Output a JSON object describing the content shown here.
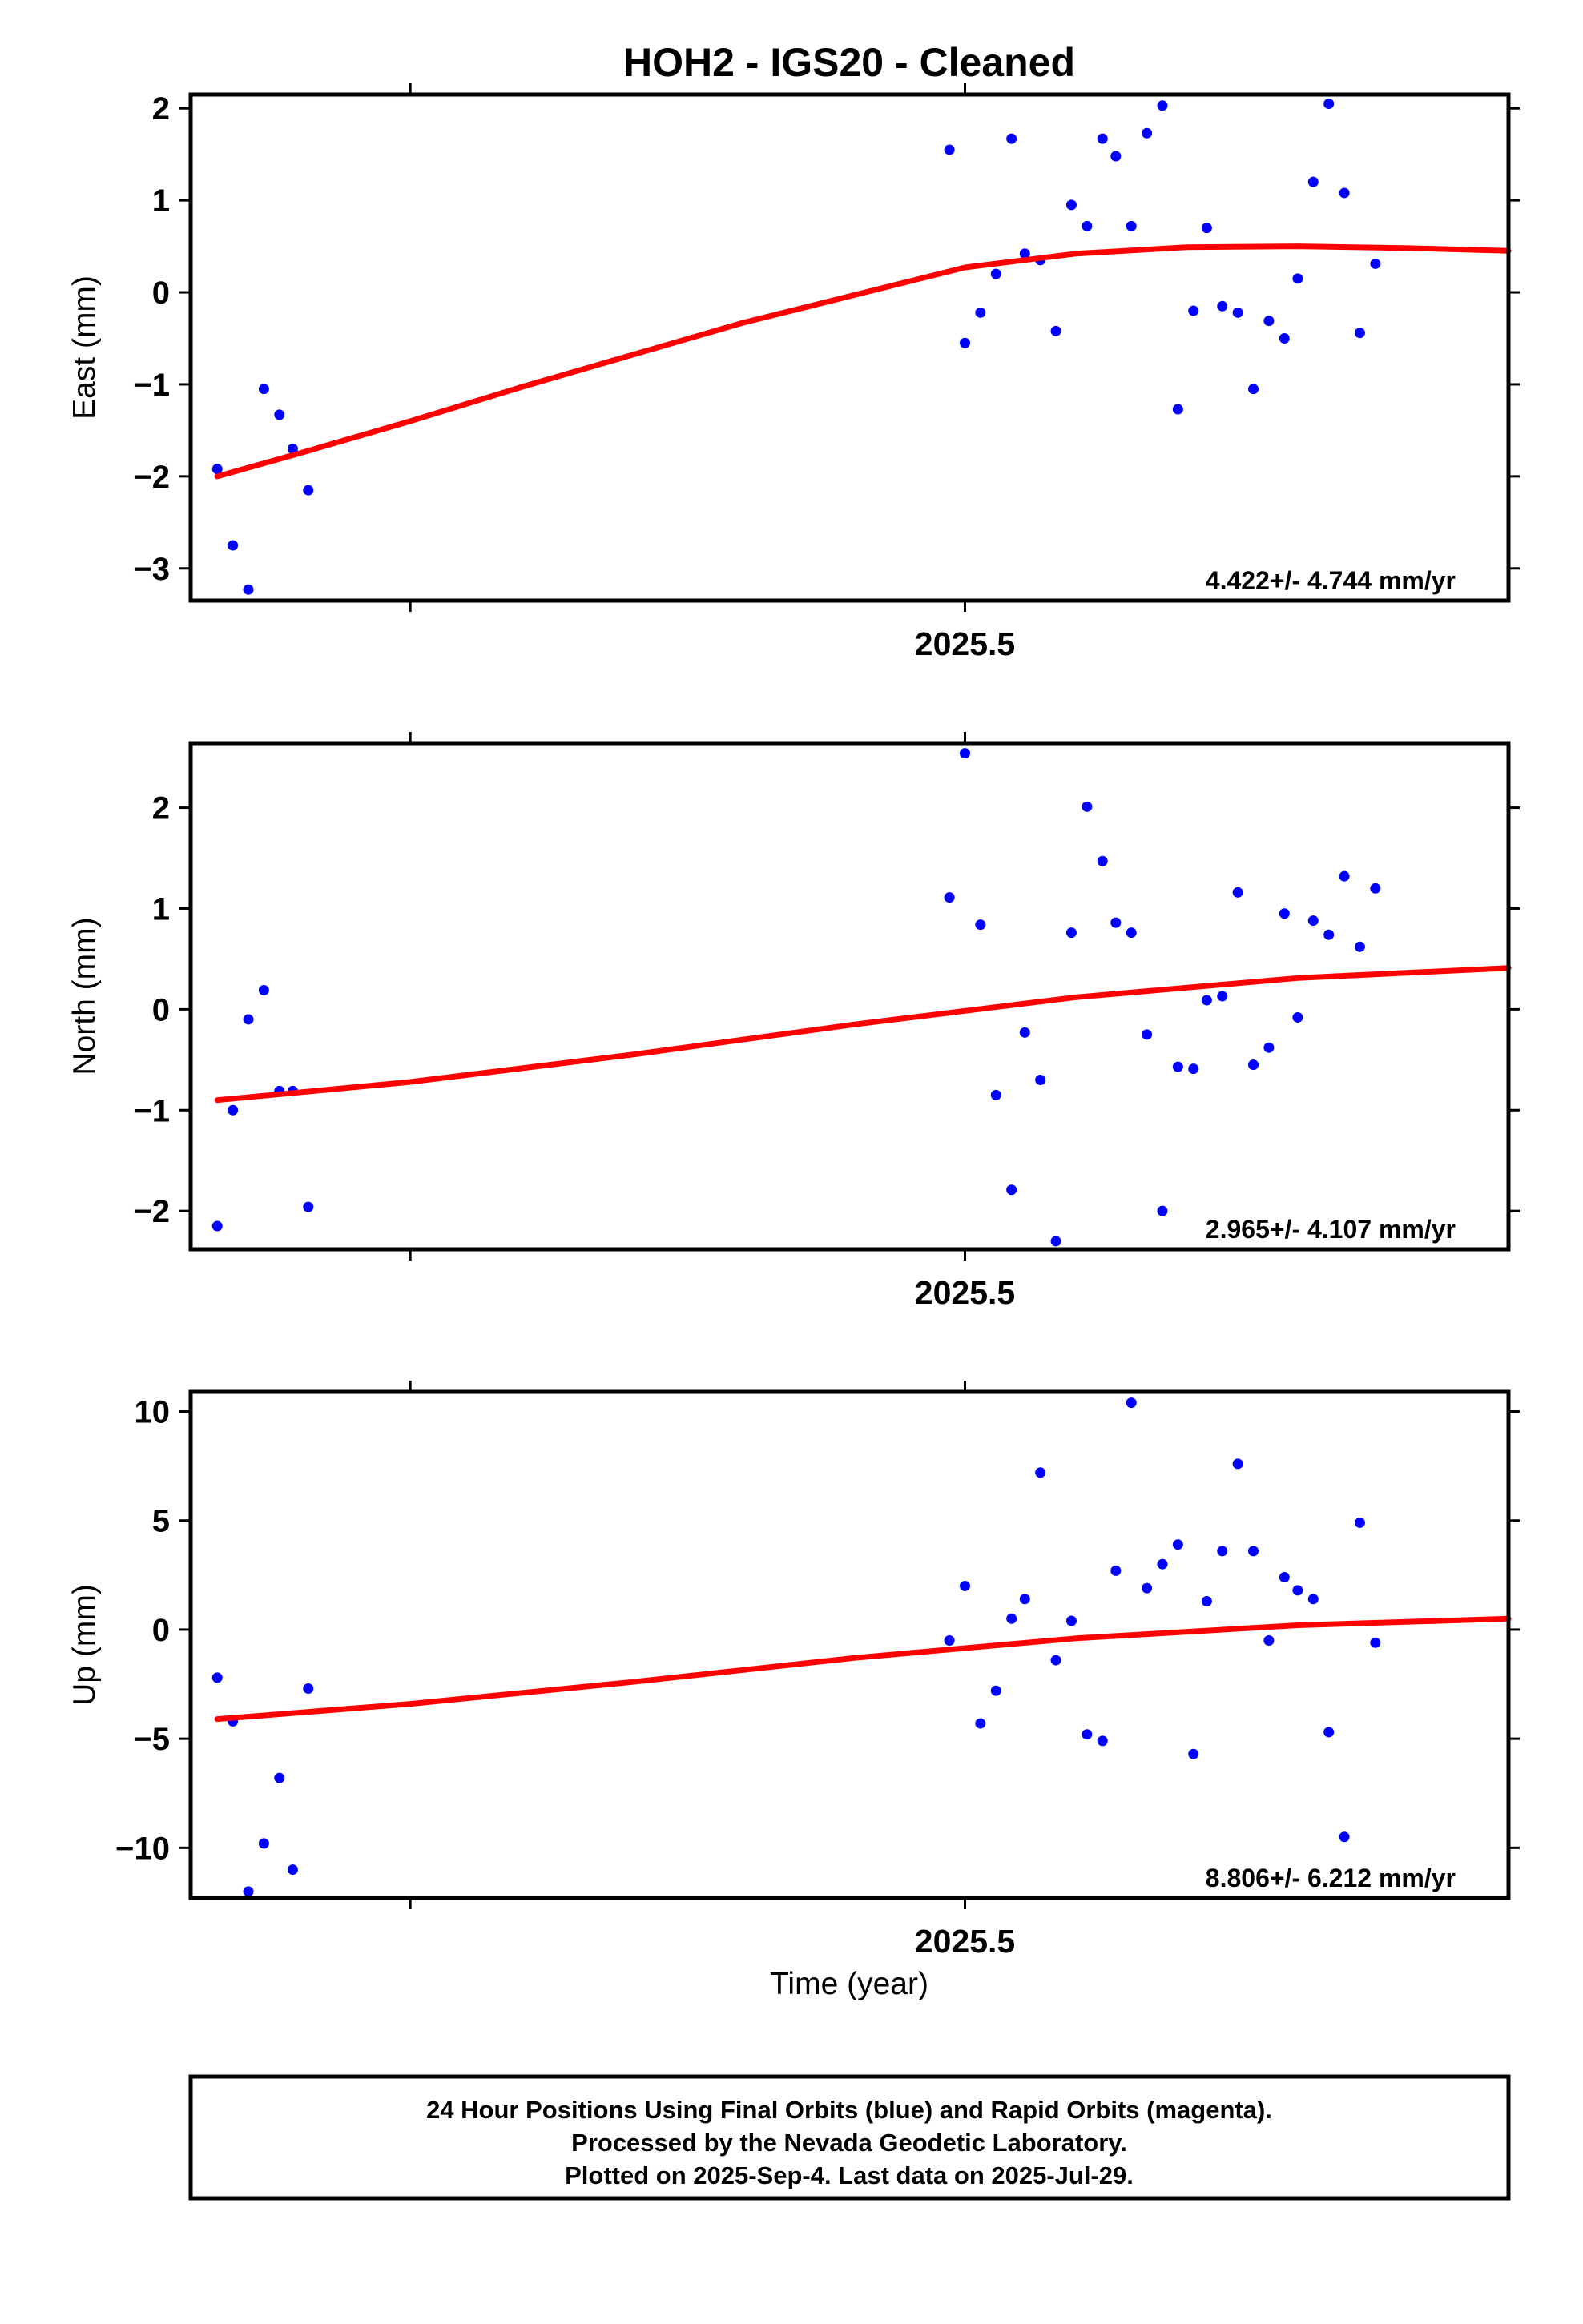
{
  "title": "HOH2  - IGS20 - Cleaned",
  "xlabel": "Time (year)",
  "x_tick_label": "2025.5",
  "footer": {
    "line1": "24 Hour Positions Using Final Orbits (blue) and Rapid Orbits (magenta).",
    "line2": "Processed by the Nevada Geodetic Laboratory.",
    "line3": "Plotted on 2025-Sep-4. Last data on 2025-Jul-29."
  },
  "colors": {
    "points": "#0000ff",
    "fit": "#ff0000",
    "frame": "#000000"
  },
  "chart_data": [
    {
      "type": "scatter",
      "ylabel": "East (mm)",
      "rate": "4.422+/- 4.744 mm/yr",
      "xlim": [
        2025.151,
        2025.745
      ],
      "ylim": [
        -3.35,
        2.15
      ],
      "yticks": [
        2,
        1,
        0,
        -1,
        -2,
        -3
      ],
      "ytick_labels": [
        "2",
        "1",
        "0",
        "−1",
        "−2",
        "−3"
      ],
      "xticks": [
        2025.25,
        2025.5
      ],
      "x": [
        2025.163,
        2025.17,
        2025.177,
        2025.184,
        2025.191,
        2025.197,
        2025.204,
        2025.493,
        2025.5,
        2025.507,
        2025.514,
        2025.521,
        2025.527,
        2025.534,
        2025.541,
        2025.548,
        2025.555,
        2025.562,
        2025.568,
        2025.575,
        2025.582,
        2025.589,
        2025.596,
        2025.603,
        2025.609,
        2025.616,
        2025.623,
        2025.63,
        2025.637,
        2025.644,
        2025.65,
        2025.657,
        2025.664,
        2025.671,
        2025.678,
        2025.685,
        2025.692,
        2025.698,
        2025.705,
        2025.712,
        2025.719,
        2025.726,
        2025.733
      ],
      "y": [
        -1.92,
        -2.75,
        -3.23,
        -1.05,
        -1.33,
        -1.7,
        -2.15,
        1.55,
        -0.55,
        -0.22,
        0.2,
        1.67,
        0.42,
        0.35,
        -0.42,
        0.95,
        0.72,
        1.67,
        1.48,
        0.72,
        1.73,
        2.03,
        -1.27,
        -0.2,
        0.7,
        -0.15,
        -0.22,
        -1.05,
        -0.31,
        -0.5,
        0.15,
        1.2,
        2.05,
        1.08,
        -0.44,
        0.31,
        null,
        null,
        null,
        null,
        null,
        null,
        null
      ],
      "fit": {
        "x": [
          2025.163,
          2025.2,
          2025.25,
          2025.3,
          2025.35,
          2025.4,
          2025.45,
          2025.5,
          2025.55,
          2025.6,
          2025.65,
          2025.7,
          2025.745
        ],
        "y": [
          -2.0,
          -1.75,
          -1.4,
          -1.03,
          -0.68,
          -0.33,
          -0.03,
          0.27,
          0.42,
          0.49,
          0.5,
          0.48,
          0.45
        ]
      }
    },
    {
      "type": "scatter",
      "ylabel": "North (mm)",
      "rate": "2.965+/- 4.107 mm/yr",
      "xlim": [
        2025.151,
        2025.745
      ],
      "ylim": [
        -2.38,
        2.64
      ],
      "yticks": [
        2,
        1,
        0,
        -1,
        -2
      ],
      "ytick_labels": [
        "2",
        "1",
        "0",
        "−1",
        "−2"
      ],
      "xticks": [
        2025.25,
        2025.5
      ],
      "x": [
        2025.163,
        2025.17,
        2025.177,
        2025.184,
        2025.191,
        2025.197,
        2025.204,
        2025.493,
        2025.5,
        2025.507,
        2025.514,
        2025.521,
        2025.527,
        2025.534,
        2025.541,
        2025.548,
        2025.555,
        2025.562,
        2025.568,
        2025.575,
        2025.582,
        2025.589,
        2025.596,
        2025.603,
        2025.609,
        2025.616,
        2025.623,
        2025.63,
        2025.637,
        2025.644,
        2025.65,
        2025.657,
        2025.664,
        2025.671,
        2025.678,
        2025.685
      ],
      "y": [
        -2.15,
        -1.0,
        -0.1,
        0.19,
        -0.81,
        -0.81,
        -1.96,
        1.11,
        2.54,
        0.84,
        -0.85,
        -1.79,
        -0.23,
        -0.7,
        -2.3,
        0.76,
        2.01,
        1.47,
        0.86,
        0.76,
        -0.25,
        -2.0,
        -0.57,
        -0.59,
        0.09,
        0.13,
        1.16,
        -0.55,
        -0.38,
        0.95,
        -0.08,
        0.88,
        0.74,
        1.32,
        0.62,
        1.2
      ],
      "fit": {
        "x": [
          2025.163,
          2025.25,
          2025.35,
          2025.45,
          2025.55,
          2025.65,
          2025.745
        ],
        "y": [
          -0.9,
          -0.72,
          -0.45,
          -0.15,
          0.12,
          0.31,
          0.41
        ]
      }
    },
    {
      "type": "scatter",
      "ylabel": "Up (mm)",
      "rate": "8.806+/- 6.212 mm/yr",
      "xlim": [
        2025.151,
        2025.745
      ],
      "ylim": [
        -12.3,
        10.9
      ],
      "yticks": [
        10,
        5,
        0,
        -5,
        -10
      ],
      "ytick_labels": [
        "10",
        "5",
        "0",
        "−5",
        "−10"
      ],
      "xticks": [
        2025.25,
        2025.5
      ],
      "x": [
        2025.163,
        2025.17,
        2025.177,
        2025.184,
        2025.191,
        2025.197,
        2025.204,
        2025.493,
        2025.5,
        2025.507,
        2025.514,
        2025.521,
        2025.527,
        2025.534,
        2025.541,
        2025.548,
        2025.555,
        2025.562,
        2025.568,
        2025.575,
        2025.582,
        2025.589,
        2025.596,
        2025.603,
        2025.609,
        2025.616,
        2025.623,
        2025.63,
        2025.637,
        2025.644,
        2025.65,
        2025.657,
        2025.664,
        2025.671,
        2025.678,
        2025.685
      ],
      "y": [
        -2.2,
        -4.2,
        -12.0,
        -9.8,
        -6.8,
        -11.0,
        -2.7,
        -0.5,
        2.0,
        -4.3,
        -2.8,
        0.5,
        1.4,
        7.2,
        -1.4,
        0.4,
        -4.8,
        -5.1,
        2.7,
        10.4,
        1.9,
        3.0,
        3.9,
        -5.7,
        1.3,
        3.6,
        7.6,
        3.6,
        -0.5,
        2.4,
        1.8,
        1.4,
        -4.7,
        -9.5,
        4.9,
        -0.6
      ],
      "fit": {
        "x": [
          2025.163,
          2025.25,
          2025.35,
          2025.45,
          2025.55,
          2025.65,
          2025.745
        ],
        "y": [
          -4.1,
          -3.4,
          -2.4,
          -1.3,
          -0.4,
          0.2,
          0.5
        ]
      }
    }
  ]
}
